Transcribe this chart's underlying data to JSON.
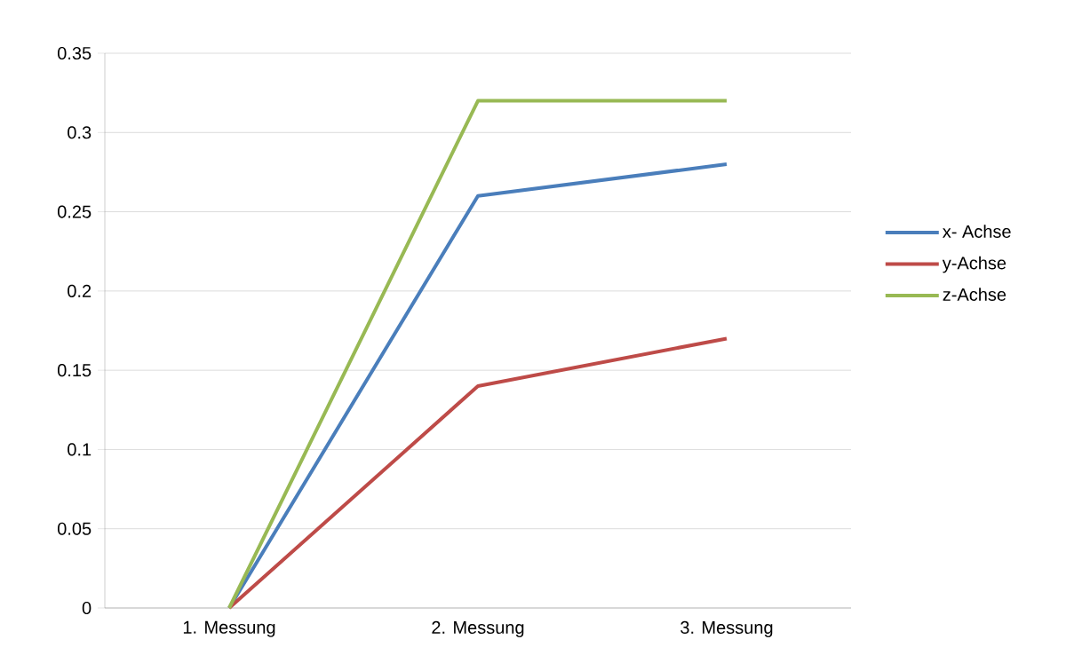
{
  "chart_data": {
    "type": "line",
    "categories": [
      "1. Messung",
      "2. Messung",
      "3. Messung"
    ],
    "series": [
      {
        "name": "x- Achse",
        "color": "#4a7ebb",
        "values": [
          0,
          0.26,
          0.28
        ]
      },
      {
        "name": "y-Achse",
        "color": "#be4b48",
        "values": [
          0,
          0.14,
          0.17
        ]
      },
      {
        "name": "z-Achse",
        "color": "#98b954",
        "values": [
          0,
          0.32,
          0.32
        ]
      }
    ],
    "ylim": [
      0,
      0.35
    ],
    "yticks": [
      0,
      0.05,
      0.1,
      0.15,
      0.2,
      0.25,
      0.3,
      0.35
    ],
    "grid": "y",
    "legend": "right",
    "line_style": "solid"
  }
}
